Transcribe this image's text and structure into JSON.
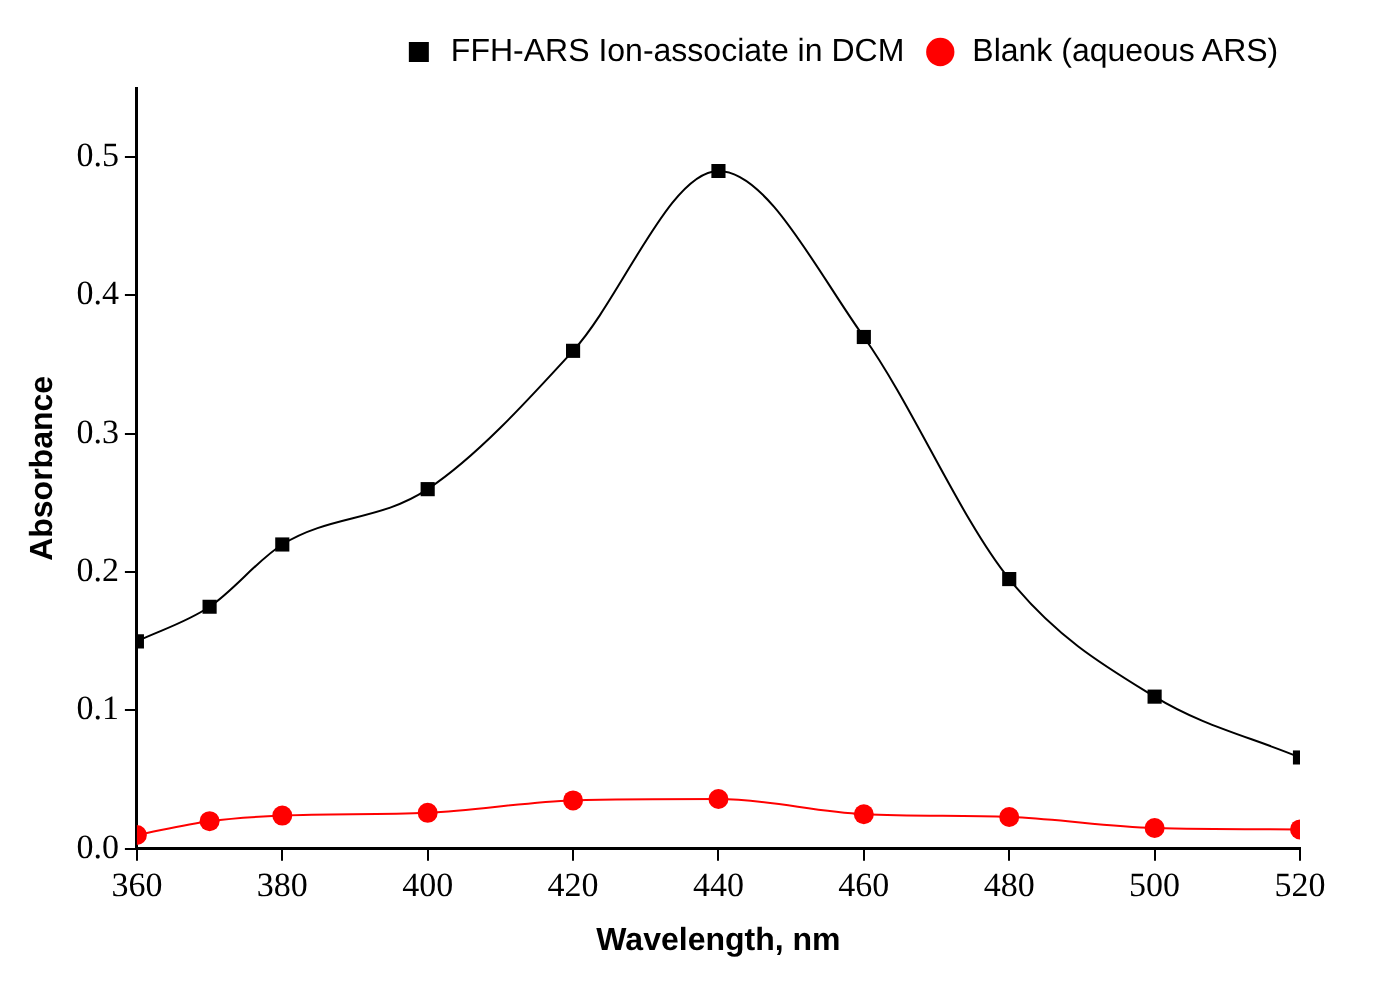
{
  "chart_data": {
    "type": "line",
    "xlabel": "Wavelength, nm",
    "ylabel": "Absorbance",
    "x": [
      360,
      370,
      380,
      400,
      420,
      440,
      460,
      480,
      500,
      520
    ],
    "series": [
      {
        "name": "FFH-ARS Ion-associate in DCM",
        "color": "#000000",
        "marker": "square",
        "values": [
          0.15,
          0.175,
          0.22,
          0.26,
          0.36,
          0.49,
          0.37,
          0.195,
          0.11,
          0.066
        ]
      },
      {
        "name": "Blank (aqueous ARS)",
        "color": "#ff0000",
        "marker": "circle",
        "values": [
          0.01,
          0.02,
          0.024,
          0.026,
          0.035,
          0.036,
          0.025,
          0.023,
          0.015,
          0.014
        ]
      }
    ],
    "xlim": [
      360,
      520
    ],
    "xticks": [
      360,
      380,
      400,
      420,
      440,
      460,
      480,
      500,
      520
    ],
    "ylim": [
      0,
      0.55
    ],
    "yticks": [
      {
        "value": 0,
        "label": "0.0"
      },
      0.1,
      0.2,
      0.3,
      0.4,
      0.5
    ],
    "grid": false,
    "legend": "top right",
    "line_style": "solid"
  }
}
